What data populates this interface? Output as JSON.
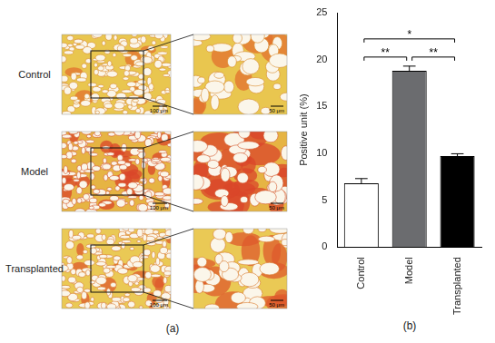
{
  "chart_data": {
    "type": "bar",
    "categories": [
      "Control",
      "Model",
      "Transplanted"
    ],
    "values": [
      6.8,
      18.8,
      9.7
    ],
    "errors": [
      0.5,
      0.5,
      0.25
    ],
    "colors": [
      "#ffffff",
      "#6b6c6f",
      "#000000"
    ],
    "y_label": "Positive unit (%)",
    "ylim": [
      0,
      25
    ],
    "yticks": [
      0,
      5,
      10,
      15,
      20,
      25
    ],
    "grid": false,
    "annotations": [
      {
        "between": [
          "Control",
          "Model"
        ],
        "label": "**"
      },
      {
        "between": [
          "Model",
          "Transplanted"
        ],
        "label": "**"
      },
      {
        "between": [
          "Control",
          "Transplanted"
        ],
        "label": "*"
      }
    ]
  },
  "image_panel": {
    "rows": [
      "Control",
      "Model",
      "Transplanted"
    ],
    "scale_bars": [
      "100 μm",
      "50 μm"
    ]
  },
  "panel_labels": [
    "(a)",
    "(b)"
  ]
}
